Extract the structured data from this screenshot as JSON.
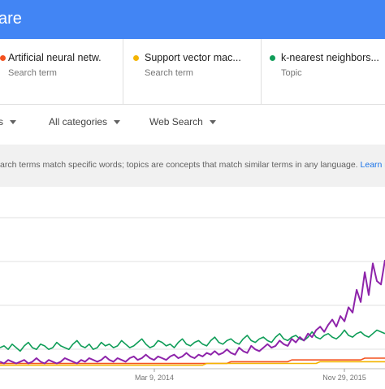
{
  "header": {
    "title": "are"
  },
  "terms": [
    {
      "name": "Artificial neural netw.",
      "kind": "Search term",
      "color": "#f4511e"
    },
    {
      "name": "Support vector mac...",
      "kind": "Search term",
      "color": "#f4b400"
    },
    {
      "name": "k-nearest neighbors...",
      "kind": "Topic",
      "color": "#0f9d58"
    }
  ],
  "filters": {
    "first": "s",
    "category": "All categories",
    "search_type": "Web Search"
  },
  "note": {
    "text": "arch terms match specific words; topics are concepts that match similar terms in any language. ",
    "link": "Learn mo"
  },
  "chart_data": {
    "type": "line",
    "x_ticks": [
      "Mar 9, 2014",
      "Nov 29, 2015"
    ],
    "ylim": [
      0,
      100
    ],
    "grid": true,
    "series": [
      {
        "name": "Artificial neural netw.",
        "color": "#f4511e",
        "values": [
          3,
          3,
          3,
          3,
          3,
          3,
          3,
          3,
          3,
          3,
          3,
          3,
          3,
          3,
          3,
          3,
          3,
          3,
          3,
          3,
          3,
          3,
          3,
          3,
          3,
          3,
          3,
          3,
          3,
          3,
          3,
          3,
          3,
          3,
          3,
          3,
          3,
          3,
          3,
          3,
          3,
          3,
          3,
          3,
          3,
          3,
          3,
          3,
          3,
          3,
          3,
          3,
          3,
          3,
          3,
          3,
          3,
          4,
          4,
          4,
          4,
          4,
          4,
          4,
          4,
          4,
          4,
          4,
          4,
          4,
          4,
          4,
          5,
          5,
          5,
          5,
          5,
          5,
          5,
          5,
          5,
          5,
          5,
          5,
          5,
          5,
          5,
          5,
          5,
          5,
          6,
          6,
          6,
          6,
          6,
          6
        ]
      },
      {
        "name": "Support vector mac...",
        "color": "#f4b400",
        "values": [
          2,
          2,
          2,
          2,
          2,
          2,
          2,
          2,
          2,
          2,
          2,
          2,
          2,
          2,
          2,
          2,
          2,
          2,
          2,
          2,
          2,
          2,
          2,
          2,
          2,
          2,
          2,
          2,
          2,
          2,
          2,
          2,
          2,
          2,
          2,
          2,
          2,
          2,
          2,
          2,
          2,
          2,
          2,
          2,
          2,
          2,
          2,
          2,
          2,
          2,
          2,
          3,
          3,
          3,
          3,
          3,
          3,
          3,
          3,
          3,
          3,
          3,
          3,
          3,
          3,
          3,
          3,
          3,
          3,
          3,
          3,
          3,
          3,
          3,
          3,
          3,
          3,
          3,
          3,
          4,
          4,
          4,
          4,
          4,
          4,
          4,
          4,
          4,
          4,
          4,
          4,
          4,
          4,
          4,
          4,
          4
        ]
      },
      {
        "name": "k-nearest neighbors...",
        "color": "#0f9d58",
        "values": [
          12,
          13,
          11,
          14,
          12,
          10,
          13,
          15,
          12,
          11,
          14,
          13,
          11,
          12,
          15,
          13,
          12,
          11,
          14,
          16,
          13,
          12,
          14,
          11,
          12,
          15,
          13,
          14,
          12,
          13,
          16,
          14,
          12,
          13,
          15,
          17,
          14,
          12,
          13,
          16,
          15,
          13,
          14,
          12,
          15,
          17,
          14,
          13,
          15,
          16,
          14,
          13,
          16,
          18,
          15,
          14,
          16,
          17,
          15,
          14,
          17,
          19,
          16,
          15,
          17,
          18,
          16,
          15,
          18,
          20,
          17,
          16,
          18,
          19,
          17,
          16,
          18,
          21,
          18,
          17,
          19,
          20,
          18,
          17,
          19,
          22,
          19,
          18,
          20,
          21,
          19,
          18,
          20,
          22,
          21,
          20
        ]
      },
      {
        "name": "",
        "color": "#8e24aa",
        "values": [
          4,
          3,
          5,
          4,
          3,
          4,
          5,
          3,
          4,
          6,
          4,
          3,
          5,
          4,
          3,
          4,
          6,
          5,
          4,
          3,
          5,
          4,
          6,
          5,
          4,
          5,
          7,
          5,
          4,
          6,
          5,
          4,
          6,
          7,
          5,
          6,
          8,
          6,
          5,
          7,
          6,
          5,
          7,
          8,
          6,
          7,
          9,
          7,
          6,
          8,
          7,
          9,
          8,
          10,
          8,
          9,
          11,
          9,
          8,
          12,
          10,
          9,
          13,
          11,
          10,
          12,
          14,
          12,
          13,
          16,
          14,
          13,
          17,
          15,
          18,
          16,
          20,
          18,
          22,
          24,
          21,
          25,
          28,
          24,
          30,
          27,
          35,
          32,
          45,
          38,
          55,
          42,
          60,
          50,
          48,
          62
        ]
      }
    ]
  }
}
